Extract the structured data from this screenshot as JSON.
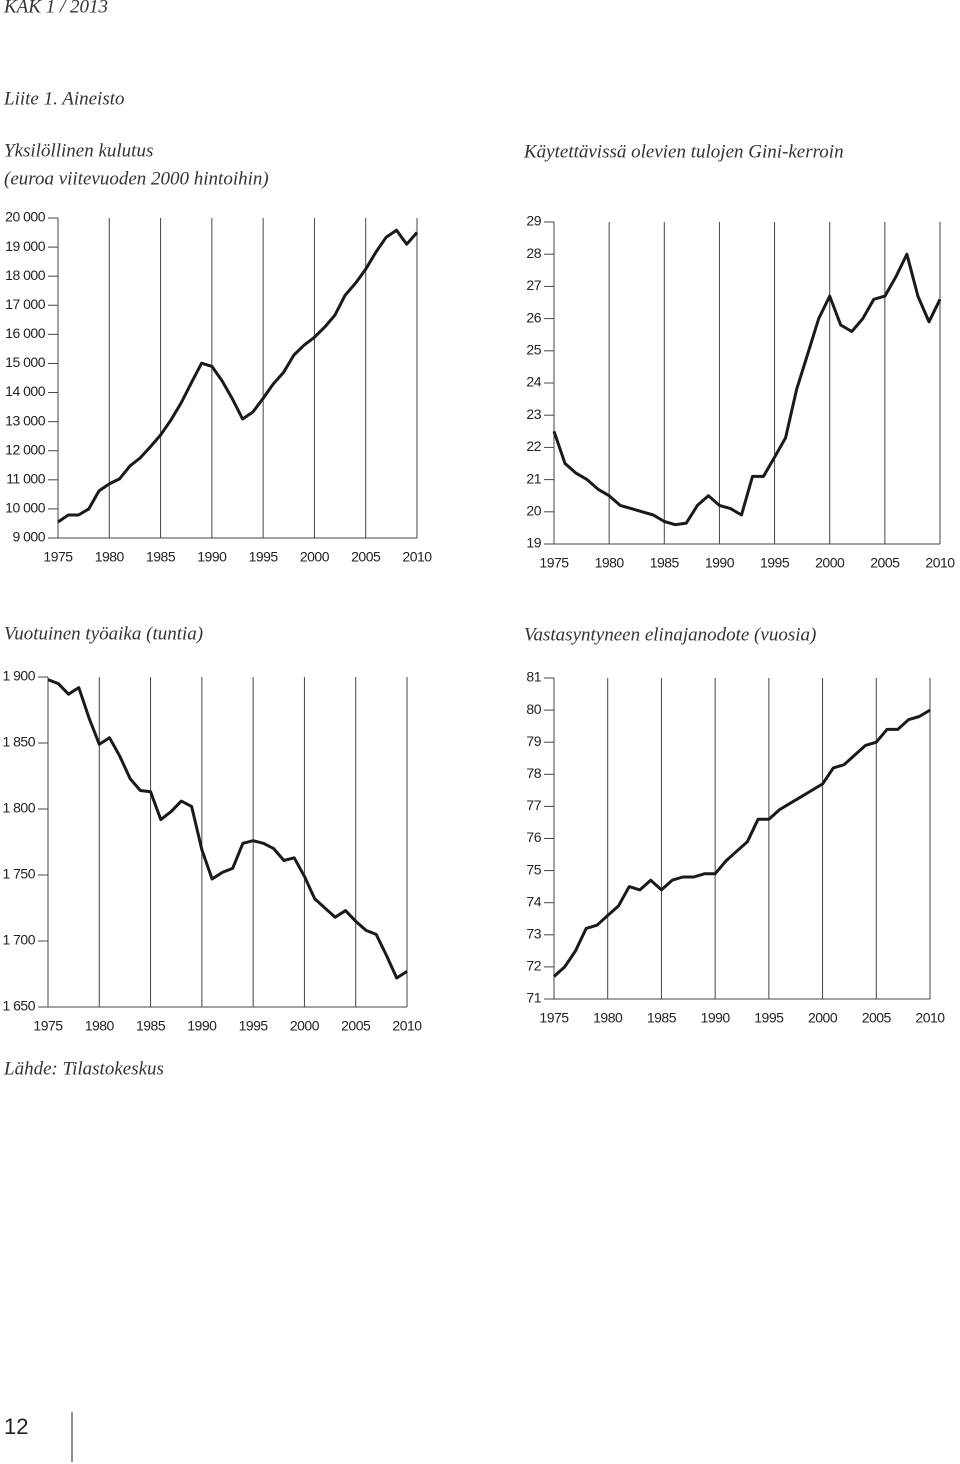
{
  "header": "KAK 1 / 2013",
  "section": "Liite 1. Aineisto",
  "source": "Lähde: Tilastokeskus",
  "page_number": "12",
  "chart_data": [
    {
      "type": "line",
      "title": "Yksilöllinen kulutus",
      "subtitle": "(euroa viitevuoden 2000 hintoihin)",
      "x": [
        1975,
        1976,
        1977,
        1978,
        1979,
        1980,
        1981,
        1982,
        1983,
        1984,
        1985,
        1986,
        1987,
        1988,
        1989,
        1990,
        1991,
        1992,
        1993,
        1994,
        1995,
        1996,
        1997,
        1998,
        1999,
        2000,
        2001,
        2002,
        2003,
        2004,
        2005,
        2006,
        2007,
        2008,
        2009,
        2010
      ],
      "values": [
        9550,
        9790,
        9790,
        10000,
        10620,
        10860,
        11030,
        11470,
        11750,
        12130,
        12540,
        13050,
        13640,
        14330,
        15010,
        14900,
        14400,
        13780,
        13090,
        13330,
        13800,
        14300,
        14700,
        15290,
        15630,
        15900,
        16250,
        16660,
        17350,
        17760,
        18240,
        18830,
        19340,
        19580,
        19100,
        19500
      ],
      "color": "#1a1a1a",
      "xlim": [
        1975,
        2010
      ],
      "xticks": [
        1975,
        1980,
        1985,
        1990,
        1995,
        2000,
        2005,
        2010
      ],
      "ylim": [
        9000,
        20000
      ],
      "yticks": [
        {
          "value": 9000,
          "label": "9 000"
        },
        {
          "value": 10000,
          "label": "10 000"
        },
        {
          "value": 11000,
          "label": "11 000"
        },
        {
          "value": 12000,
          "label": "12 000"
        },
        {
          "value": 13000,
          "label": "13 000"
        },
        {
          "value": 14000,
          "label": "14 000"
        },
        {
          "value": 15000,
          "label": "15 000"
        },
        {
          "value": 16000,
          "label": "16 000"
        },
        {
          "value": 17000,
          "label": "17 000"
        },
        {
          "value": 18000,
          "label": "18 000"
        },
        {
          "value": 19000,
          "label": "19 000"
        },
        {
          "value": 20000,
          "label": "20 000"
        }
      ],
      "grid": "x"
    },
    {
      "type": "line",
      "title": "Käytettävissä olevien tulojen Gini-kerroin",
      "x": [
        1975,
        1976,
        1977,
        1978,
        1979,
        1980,
        1981,
        1982,
        1983,
        1984,
        1985,
        1986,
        1987,
        1988,
        1989,
        1990,
        1991,
        1992,
        1993,
        1994,
        1995,
        1996,
        1997,
        1998,
        1999,
        2000,
        2001,
        2002,
        2003,
        2004,
        2005,
        2006,
        2007,
        2008,
        2009,
        2010
      ],
      "values": [
        22.5,
        21.5,
        21.2,
        21.0,
        20.7,
        20.5,
        20.2,
        20.1,
        20.0,
        19.9,
        19.7,
        19.6,
        19.65,
        20.2,
        20.5,
        20.2,
        20.1,
        19.9,
        21.1,
        21.1,
        21.7,
        22.3,
        23.8,
        24.9,
        26.0,
        26.7,
        25.8,
        25.6,
        26.0,
        26.6,
        26.7,
        27.3,
        28.0,
        26.7,
        25.9,
        26.6
      ],
      "color": "#1a1a1a",
      "xlim": [
        1975,
        2010
      ],
      "xticks": [
        1975,
        1980,
        1985,
        1990,
        1995,
        2000,
        2005,
        2010
      ],
      "ylim": [
        19,
        29
      ],
      "yticks": [
        19,
        20,
        21,
        22,
        23,
        24,
        25,
        26,
        27,
        28,
        29
      ],
      "grid": "x"
    },
    {
      "type": "line",
      "title": "Vuotuinen työaika (tuntia)",
      "x": [
        1975,
        1976,
        1977,
        1978,
        1979,
        1980,
        1981,
        1982,
        1983,
        1984,
        1985,
        1986,
        1987,
        1988,
        1989,
        1990,
        1991,
        1992,
        1993,
        1994,
        1995,
        1996,
        1997,
        1998,
        1999,
        2000,
        2001,
        2002,
        2003,
        2004,
        2005,
        2006,
        2007,
        2008,
        2009,
        2010
      ],
      "values": [
        1898,
        1895,
        1887,
        1892,
        1869,
        1849,
        1854,
        1840,
        1823,
        1814,
        1813,
        1792,
        1798,
        1806,
        1802,
        1769,
        1747,
        1752,
        1755,
        1774,
        1776,
        1774,
        1770,
        1761,
        1763,
        1749,
        1732,
        1725,
        1718,
        1723,
        1715,
        1708,
        1705,
        1689,
        1672,
        1677
      ],
      "color": "#1a1a1a",
      "xlim": [
        1975,
        2010
      ],
      "xticks": [
        1975,
        1980,
        1985,
        1990,
        1995,
        2000,
        2005,
        2010
      ],
      "ylim": [
        1650,
        1900
      ],
      "yticks": [
        {
          "value": 1650,
          "label": "1 650"
        },
        {
          "value": 1700,
          "label": "1 700"
        },
        {
          "value": 1750,
          "label": "1 750"
        },
        {
          "value": 1800,
          "label": "1 800"
        },
        {
          "value": 1850,
          "label": "1 850"
        },
        {
          "value": 1900,
          "label": "1 900"
        }
      ],
      "grid": "x"
    },
    {
      "type": "line",
      "title": "Vastasyntyneen elinajanodote (vuosia)",
      "x": [
        1975,
        1976,
        1977,
        1978,
        1979,
        1980,
        1981,
        1982,
        1983,
        1984,
        1985,
        1986,
        1987,
        1988,
        1989,
        1990,
        1991,
        1992,
        1993,
        1994,
        1995,
        1996,
        1997,
        1998,
        1999,
        2000,
        2001,
        2002,
        2003,
        2004,
        2005,
        2006,
        2007,
        2008,
        2009,
        2010
      ],
      "values": [
        71.7,
        72.0,
        72.5,
        73.2,
        73.3,
        73.6,
        73.9,
        74.5,
        74.4,
        74.7,
        74.4,
        74.7,
        74.8,
        74.8,
        74.9,
        74.9,
        75.3,
        75.6,
        75.9,
        76.6,
        76.6,
        76.9,
        77.1,
        77.3,
        77.5,
        77.7,
        78.2,
        78.3,
        78.6,
        78.9,
        79.0,
        79.4,
        79.4,
        79.7,
        79.8,
        80.0
      ],
      "color": "#1a1a1a",
      "xlim": [
        1975,
        2010
      ],
      "xticks": [
        1975,
        1980,
        1985,
        1990,
        1995,
        2000,
        2005,
        2010
      ],
      "ylim": [
        71,
        81
      ],
      "yticks": [
        71,
        72,
        73,
        74,
        75,
        76,
        77,
        78,
        79,
        80,
        81
      ],
      "grid": "x"
    }
  ]
}
